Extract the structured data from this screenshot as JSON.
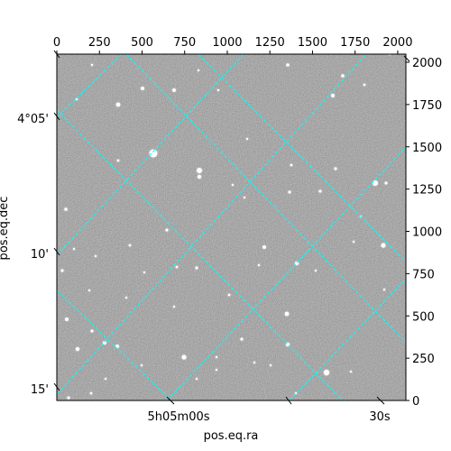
{
  "chart_data": {
    "type": "scatter",
    "description_kind": "astronomical image with WCS coordinate grid",
    "pixel_axes": {
      "x_ticks": [
        0,
        250,
        500,
        750,
        1000,
        1250,
        1500,
        1750,
        2000
      ],
      "y_ticks": [
        0,
        250,
        500,
        750,
        1000,
        1250,
        1500,
        1750,
        2000
      ],
      "xlim": [
        0,
        2048
      ],
      "ylim": [
        0,
        2048
      ]
    },
    "world_axes": {
      "xlabel": "pos.eq.ra",
      "ylabel": "pos.eq.dec",
      "ra_ticks": [
        {
          "label": "5h05m00s"
        },
        {
          "label": "30s"
        }
      ],
      "dec_ticks": [
        {
          "label": "4°05'"
        },
        {
          "label": "10'"
        },
        {
          "label": "15'"
        }
      ]
    },
    "grid_color": "#00ffff",
    "grid_style": "dashed",
    "colormap": "gray"
  }
}
